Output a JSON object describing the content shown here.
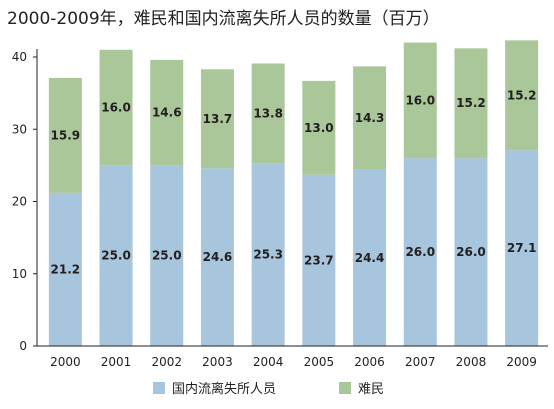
{
  "chart_data": {
    "type": "bar",
    "stacked": true,
    "title": "2000-2009年，难民和国内流离失所人员的数量（百万）",
    "categories": [
      "2000",
      "2001",
      "2002",
      "2003",
      "2004",
      "2005",
      "2006",
      "2007",
      "2008",
      "2009"
    ],
    "series": [
      {
        "name": "国内流离失所人员",
        "color": "#a7c5dc",
        "values": [
          21.2,
          25.0,
          25.0,
          24.6,
          25.3,
          23.7,
          24.4,
          26.0,
          26.0,
          27.1
        ],
        "labels": [
          "21.2",
          "25.0",
          "25.0",
          "24.6",
          "25.3",
          "23.7",
          "24.4",
          "26.0",
          "26.0",
          "27.1"
        ]
      },
      {
        "name": "难民",
        "color": "#aac79a",
        "values": [
          15.9,
          16.0,
          14.6,
          13.7,
          13.8,
          13.0,
          14.3,
          16.0,
          15.2,
          15.2
        ],
        "labels": [
          "15.9",
          "16.0",
          "14.6",
          "13.7",
          "13.8",
          "13.0",
          "14.3",
          "16.0",
          "15.2",
          "15.2"
        ]
      }
    ],
    "yticks": [
      "0",
      "10",
      "20",
      "30",
      "40"
    ],
    "ylim": [
      0,
      40
    ],
    "grid": false,
    "legend_position": "bottom"
  }
}
